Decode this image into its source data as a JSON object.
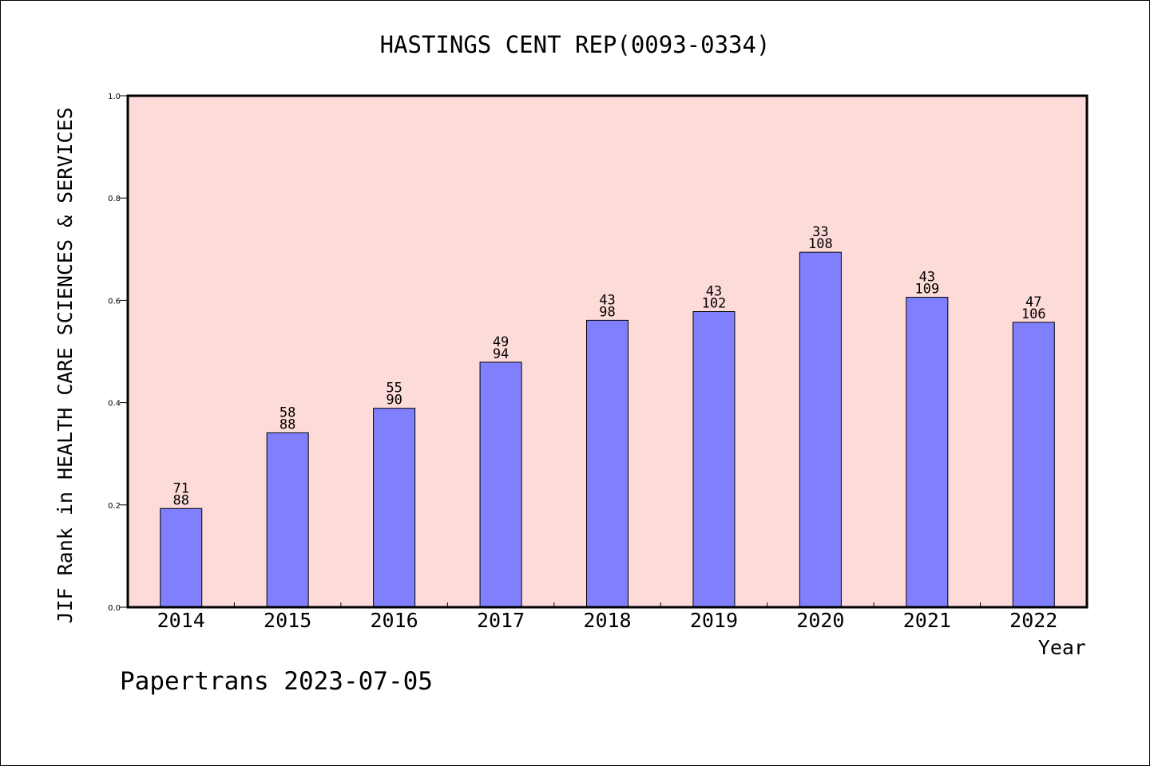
{
  "chart_data": {
    "type": "bar",
    "title": "HASTINGS CENT REP(0093-0334)",
    "xlabel": "Year",
    "ylabel": "JIF Rank in HEALTH CARE SCIENCES & SERVICES",
    "categories": [
      "2014",
      "2015",
      "2016",
      "2017",
      "2018",
      "2019",
      "2020",
      "2021",
      "2022"
    ],
    "values": [
      0.193,
      0.341,
      0.389,
      0.479,
      0.561,
      0.578,
      0.694,
      0.606,
      0.557
    ],
    "rank": [
      "71",
      "58",
      "55",
      "49",
      "43",
      "43",
      "33",
      "43",
      "47"
    ],
    "total": [
      "88",
      "88",
      "90",
      "94",
      "98",
      "102",
      "108",
      "109",
      "106"
    ],
    "ylim": [
      0,
      1.0
    ],
    "yticks": [
      "0.0",
      "0.2",
      "0.4",
      "0.6",
      "0.8",
      "1.0"
    ],
    "grid": false,
    "colors": {
      "plot_bg": "#fddbd8",
      "bar": "#8080ff",
      "axis": "#000000"
    }
  },
  "footer": {
    "watermark": "Papertrans 2023-07-05"
  }
}
